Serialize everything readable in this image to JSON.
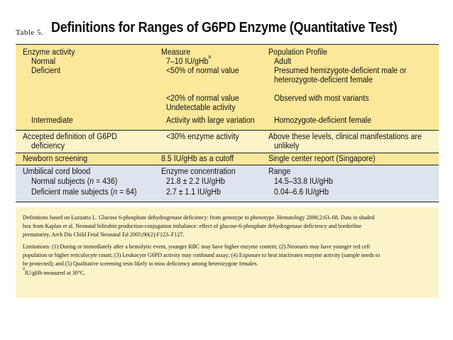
{
  "title": {
    "label": "Table 5.",
    "text": "Definitions for Ranges of G6PD Enzyme (Quantitative Test)"
  },
  "headers": {
    "col1": "Enzyme activity",
    "col2": "Measure",
    "col3": "Population Profile"
  },
  "rows": {
    "normal": {
      "c1": "Normal",
      "c2": "7–10 IU/gHb",
      "c2_sup": "a",
      "c3": "Adult"
    },
    "deficient": {
      "c1": "Deficient",
      "c2": "<50% of normal value",
      "c3_line1": "Presumed hemizygote-deficient male or",
      "c3_line2": "heterozygote-deficient female"
    },
    "deficient_20": {
      "c2": "<20% of normal value",
      "c3": "Observed with most variants"
    },
    "undetectable": {
      "c2": "Undetectable activity"
    },
    "intermediate": {
      "c1": "Intermediate",
      "c2": "Activity with large variation",
      "c3": "Homozygote-deficient female"
    },
    "accepted": {
      "c1_line1": "Accepted definition of G6PD",
      "c1_line2": "deficiency",
      "c2": "<30% enzyme activity",
      "c3_line1": "Above these levels, clinical manifestations are",
      "c3_line2": "unlikely"
    },
    "newborn": {
      "c1": "Newborn screening",
      "c2": "8.5 IU/gHb as a cutoff",
      "c3": "Single center report (Singapore)"
    },
    "cord": {
      "c1": "Umbilical cord blood",
      "c2": "Enzyme concentration",
      "c3": "Range"
    },
    "normal_subjects": {
      "c1_pre": "Normal subjects (",
      "c1_n": "n",
      "c1_post": " = 436)",
      "c2": "21.8 ± 2.2 IU/gHb",
      "c3": "14.5–33.8 IU/gHb"
    },
    "deficient_male": {
      "c1_pre": "Deficient male subjects (",
      "c1_n": "n",
      "c1_post": " = 64)",
      "c2": "2.7 ± 1.1 IU/gHb",
      "c3": "0.04–6.6 IU/gHb"
    }
  },
  "footnotes": {
    "def_line1": "Definitions based on Luzzatto L. Glucose 6-phosphate dehydrogenase deficiency: from genotype to phenotype. Hematology 2006;2:63–68. Data in shaded",
    "def_line2": "box from Kaplan et al. Neonatal bilirubin production-conjugation imbalance: effect of glucose-6-phosphate dehydrogenase deficiency and borderline",
    "def_line3": "prematurity. Arch Dis Child Fetal Neonatal Ed 2005;90(2):F123–F127.",
    "lim_line1": "Limitations: (1) During or immediately after a hemolytic event, younger RBC may have higher enzyme content; (2) Neonates may have younger red cell",
    "lim_line2": "population or higher reticulocyte count; (3) Leukocyte G6PD activity may confound assay; (4) Exposure to heat inactivates enzyme activity (sample needs to",
    "lim_line3": "be protected); and (5) Qualitative screening tests likely to miss deficiency among heterozygote females.",
    "note_sup": "a",
    "note_text": "IU/gHb measured at 30°C."
  }
}
